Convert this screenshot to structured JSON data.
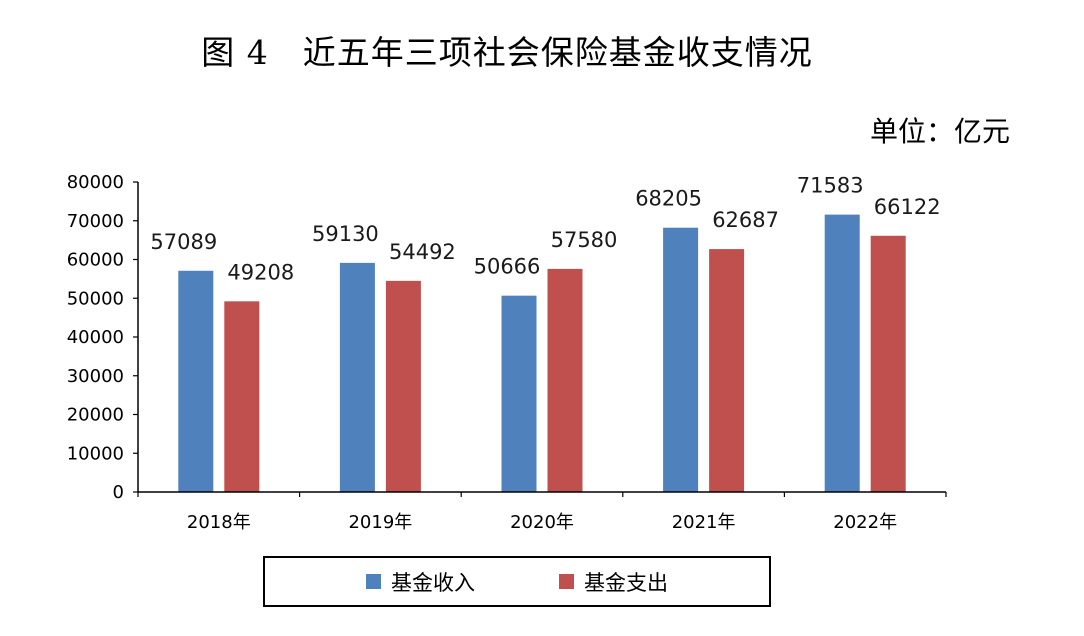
{
  "chart_data": {
    "type": "bar",
    "title": "图 4　近五年三项社会保险基金收支情况",
    "unit": "单位：亿元",
    "categories": [
      "2018年",
      "2019年",
      "2020年",
      "2021年",
      "2022年"
    ],
    "series": [
      {
        "name": "基金收入",
        "color": "#4f81bd",
        "values": [
          57089,
          59130,
          50666,
          68205,
          71583
        ]
      },
      {
        "name": "基金支出",
        "color": "#c0504d",
        "values": [
          49208,
          54492,
          57580,
          62687,
          66122
        ]
      }
    ],
    "ylim": [
      0,
      80000
    ],
    "yticks": [
      "0",
      "10000",
      "20000",
      "30000",
      "40000",
      "50000",
      "60000",
      "70000",
      "80000"
    ],
    "grid": false,
    "legend_position": "bottom"
  }
}
